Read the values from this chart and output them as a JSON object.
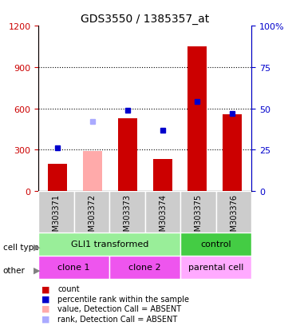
{
  "title": "GDS3550 / 1385357_at",
  "samples": [
    "GSM303371",
    "GSM303372",
    "GSM303373",
    "GSM303374",
    "GSM303375",
    "GSM303376"
  ],
  "counts": [
    200,
    0,
    530,
    230,
    1050,
    560
  ],
  "counts_absent": [
    0,
    290,
    0,
    0,
    0,
    0
  ],
  "percentile_ranks": [
    26,
    0,
    49,
    37,
    54,
    47
  ],
  "percentile_absent": [
    0,
    42,
    0,
    0,
    0,
    0
  ],
  "is_absent": [
    false,
    true,
    false,
    false,
    false,
    false
  ],
  "ylim_left": [
    0,
    1200
  ],
  "ylim_right": [
    0,
    100
  ],
  "yticks_left": [
    0,
    300,
    600,
    900,
    1200
  ],
  "yticks_right": [
    0,
    25,
    50,
    75,
    100
  ],
  "bar_color_present": "#cc0000",
  "bar_color_absent": "#ffaaaa",
  "dot_color_present": "#0000cc",
  "dot_color_absent": "#aaaaff",
  "xticklabel_bg": "#cccccc",
  "cell_type_labels": [
    {
      "text": "GLI1 transformed",
      "start": 0,
      "end": 4,
      "color": "#99ee99"
    },
    {
      "text": "control",
      "start": 4,
      "end": 6,
      "color": "#44cc44"
    }
  ],
  "other_labels": [
    {
      "text": "clone 1",
      "start": 0,
      "end": 2,
      "color": "#ee55ee"
    },
    {
      "text": "clone 2",
      "start": 2,
      "end": 4,
      "color": "#ee55ee"
    },
    {
      "text": "parental cell",
      "start": 4,
      "end": 6,
      "color": "#ffaaff"
    }
  ],
  "legend_items": [
    {
      "color": "#cc0000",
      "label": "count"
    },
    {
      "color": "#0000cc",
      "label": "percentile rank within the sample"
    },
    {
      "color": "#ffaaaa",
      "label": "value, Detection Call = ABSENT"
    },
    {
      "color": "#aaaaff",
      "label": "rank, Detection Call = ABSENT"
    }
  ]
}
